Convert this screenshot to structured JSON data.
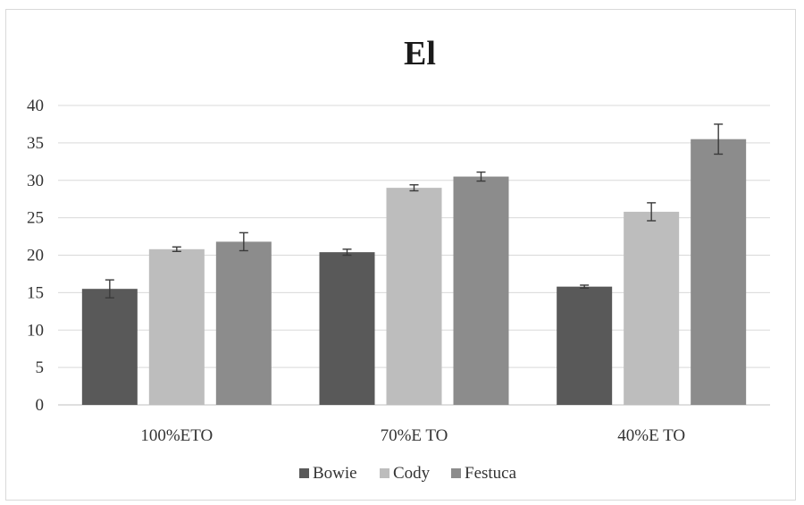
{
  "chart_data": {
    "type": "bar",
    "title": "El",
    "categories": [
      "100%ETO",
      "70%E TO",
      "40%E TO"
    ],
    "series": [
      {
        "name": "Bowie",
        "color": "#595959",
        "values": [
          15.5,
          20.4,
          15.8
        ],
        "errors": [
          1.2,
          0.4,
          0.2
        ]
      },
      {
        "name": "Cody",
        "color": "#bdbdbd",
        "values": [
          20.8,
          29.0,
          25.8
        ],
        "errors": [
          0.3,
          0.4,
          1.2
        ]
      },
      {
        "name": "Festuca",
        "color": "#8c8c8c",
        "values": [
          21.8,
          30.5,
          35.5
        ],
        "errors": [
          1.2,
          0.6,
          2.0
        ]
      }
    ],
    "ylim": [
      0,
      40
    ],
    "yticks": [
      0,
      5,
      10,
      15,
      20,
      25,
      30,
      35,
      40
    ],
    "grid": true,
    "legend_position": "bottom"
  }
}
